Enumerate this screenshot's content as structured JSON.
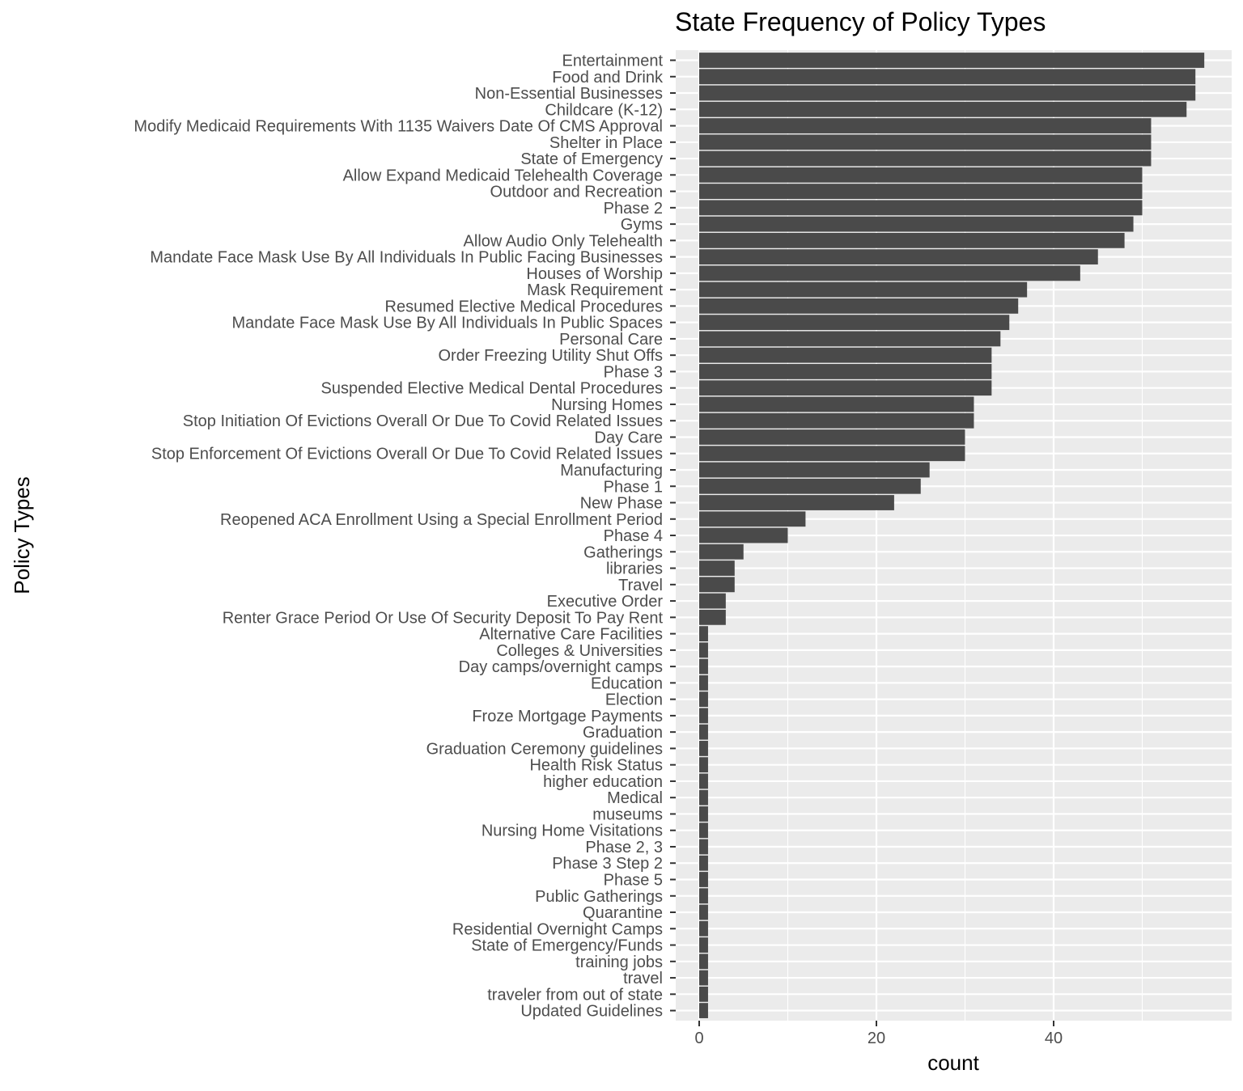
{
  "chart_data": {
    "type": "bar",
    "orientation": "horizontal",
    "title": "State Frequency of Policy Types",
    "xlabel": "count",
    "ylabel": "Policy Types",
    "xlim": [
      0,
      60
    ],
    "x_ticks": [
      0,
      20,
      40
    ],
    "grid": true,
    "legend": "none",
    "colors": {
      "bar": "#4a4a4a",
      "panel": "#ebebeb",
      "grid": "#ffffff"
    },
    "categories": [
      "Entertainment",
      "Food and Drink",
      "Non-Essential Businesses",
      "Childcare (K-12)",
      "Modify Medicaid Requirements With 1135 Waivers Date Of CMS Approval",
      "Shelter in Place",
      "State of Emergency",
      "Allow Expand Medicaid Telehealth Coverage",
      "Outdoor and Recreation",
      "Phase 2",
      "Gyms",
      "Allow Audio Only Telehealth",
      "Mandate Face Mask Use By All Individuals In Public Facing Businesses",
      "Houses of Worship",
      "Mask Requirement",
      "Resumed Elective Medical Procedures",
      "Mandate Face Mask Use By All Individuals In Public Spaces",
      "Personal Care",
      "Order Freezing Utility Shut Offs",
      "Phase 3",
      "Suspended Elective Medical Dental Procedures",
      "Nursing Homes",
      "Stop Initiation Of Evictions Overall Or Due To Covid Related Issues",
      "Day Care",
      "Stop Enforcement Of Evictions Overall Or Due To Covid Related Issues",
      "Manufacturing",
      "Phase 1",
      "New Phase",
      "Reopened ACA Enrollment Using a Special Enrollment Period",
      "Phase 4",
      "Gatherings",
      "libraries",
      "Travel",
      "Executive Order",
      "Renter Grace Period Or Use Of Security Deposit To Pay Rent",
      "Alternative Care Facilities ",
      "Colleges & Universities",
      "Day camps/overnight camps",
      "Education",
      "Election",
      "Froze Mortgage Payments",
      "Graduation",
      "Graduation Ceremony guidelines",
      "Health Risk Status",
      "higher education",
      "Medical",
      "museums",
      "Nursing Home Visitations",
      "Phase 2, 3",
      "Phase 3 Step 2",
      "Phase 5",
      "Public Gatherings",
      "Quarantine",
      "Residential Overnight Camps",
      "State of Emergency/Funds",
      "training jobs",
      "travel",
      "traveler from out of state",
      "Updated Guidelines"
    ],
    "values": [
      57,
      56,
      56,
      55,
      51,
      51,
      51,
      50,
      50,
      50,
      49,
      48,
      45,
      43,
      37,
      36,
      35,
      34,
      33,
      33,
      33,
      31,
      31,
      30,
      30,
      26,
      25,
      22,
      12,
      10,
      5,
      4,
      4,
      3,
      3,
      1,
      1,
      1,
      1,
      1,
      1,
      1,
      1,
      1,
      1,
      1,
      1,
      1,
      1,
      1,
      1,
      1,
      1,
      1,
      1,
      1,
      1,
      1,
      1
    ]
  }
}
